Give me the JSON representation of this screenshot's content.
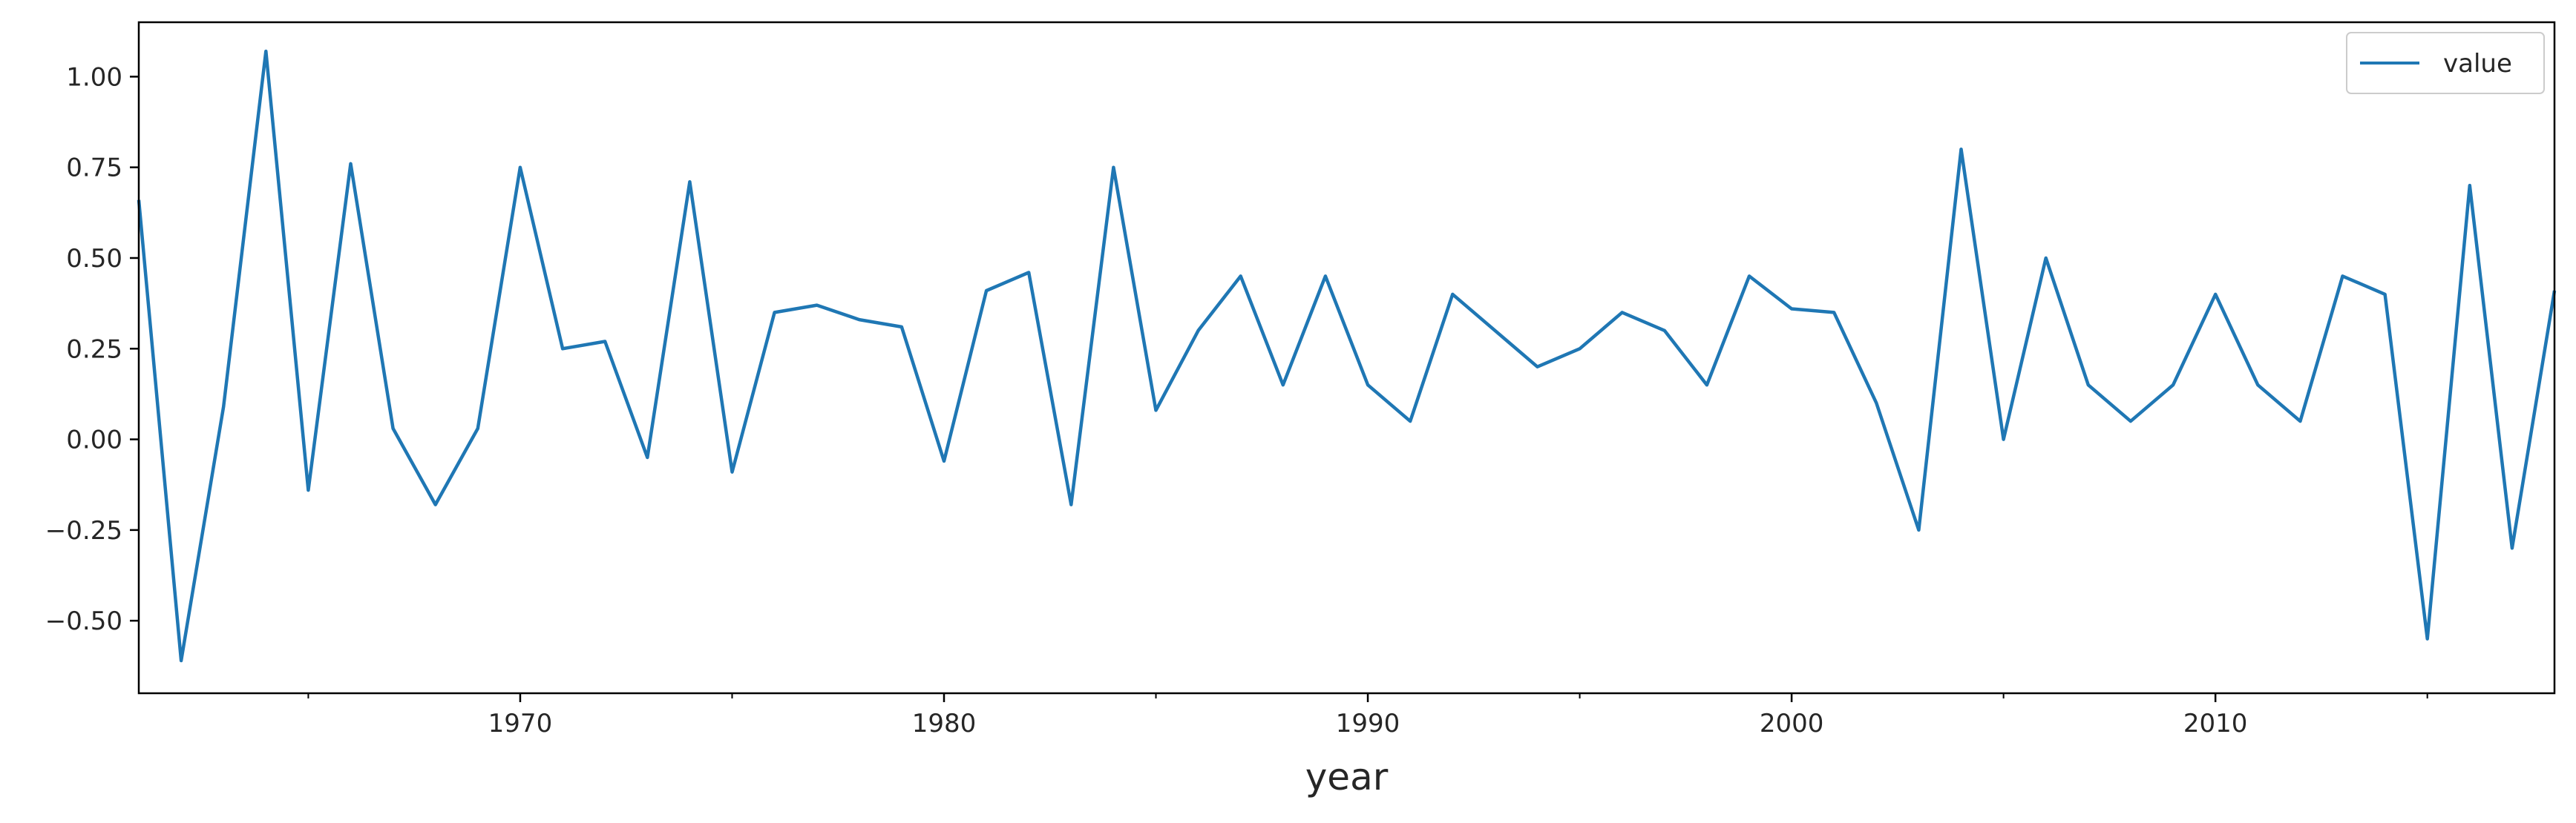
{
  "chart_data": {
    "type": "line",
    "title": "",
    "xlabel": "year",
    "ylabel": "",
    "xlim": [
      1961,
      2018
    ],
    "ylim": [
      -0.7,
      1.15
    ],
    "x_ticks": [
      1970,
      1980,
      1990,
      2000,
      2010
    ],
    "x_minor_ticks": [
      1965,
      1975,
      1985,
      1995,
      2005,
      2015
    ],
    "y_ticks": [
      -0.5,
      -0.25,
      0.0,
      0.25,
      0.5,
      0.75,
      1.0
    ],
    "y_tick_labels": [
      "−0.50",
      "−0.25",
      "0.00",
      "0.25",
      "0.50",
      "0.75",
      "1.00"
    ],
    "grid": false,
    "legend": {
      "position": "top-right",
      "entries": [
        "value"
      ]
    },
    "series": [
      {
        "name": "value",
        "color": "#1f77b4",
        "x": [
          1961,
          1962,
          1963,
          1964,
          1965,
          1966,
          1967,
          1968,
          1969,
          1970,
          1971,
          1972,
          1973,
          1974,
          1975,
          1976,
          1977,
          1978,
          1979,
          1980,
          1981,
          1982,
          1983,
          1984,
          1985,
          1986,
          1987,
          1988,
          1989,
          1990,
          1991,
          1992,
          1993,
          1994,
          1995,
          1996,
          1997,
          1998,
          1999,
          2000,
          2001,
          2002,
          2003,
          2004,
          2005,
          2006,
          2007,
          2008,
          2009,
          2010,
          2011,
          2012,
          2013,
          2014,
          2015,
          2016,
          2017,
          2018
        ],
        "values": [
          0.66,
          -0.61,
          0.09,
          1.07,
          -0.14,
          0.76,
          0.03,
          -0.18,
          0.03,
          0.75,
          0.25,
          0.27,
          -0.05,
          0.71,
          -0.09,
          0.35,
          0.37,
          0.33,
          0.31,
          -0.06,
          0.41,
          0.46,
          -0.18,
          0.75,
          0.08,
          0.3,
          0.45,
          0.15,
          0.45,
          0.15,
          0.05,
          0.4,
          0.3,
          0.2,
          0.25,
          0.35,
          0.3,
          0.15,
          0.45,
          0.36,
          0.35,
          0.1,
          -0.25,
          0.8,
          0.0,
          0.5,
          0.15,
          0.05,
          0.15,
          0.4,
          0.15,
          0.05,
          0.45,
          0.4,
          -0.55,
          0.7,
          -0.3,
          0.41
        ]
      }
    ]
  }
}
